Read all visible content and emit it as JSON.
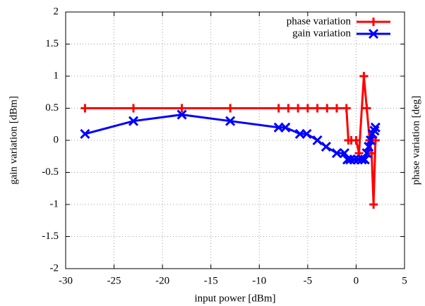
{
  "chart_data": {
    "type": "line",
    "xlabel": "input power [dBm]",
    "ylabel": "gain variation [dBm]",
    "y2label": "phase variation [deg]",
    "xlim": [
      -30,
      5
    ],
    "xticks": [
      -30,
      -25,
      -20,
      -15,
      -10,
      -5,
      0,
      5
    ],
    "ylim": [
      -2,
      2
    ],
    "yticks": [
      -2,
      -1.5,
      -1,
      -0.5,
      0,
      0.5,
      1,
      1.5,
      2
    ],
    "grid": true,
    "legend": "top-right",
    "series": [
      {
        "name": "phase variation",
        "color": "#ff0000",
        "marker": "plus",
        "x": [
          -28,
          -23,
          -18,
          -13,
          -8,
          -7,
          -6,
          -5,
          -4,
          -3,
          -2,
          -1,
          -0.8,
          -0.5,
          0,
          0.3,
          0.8,
          1.1,
          1.4,
          1.6,
          1.8,
          2
        ],
        "values": [
          0.5,
          0.5,
          0.5,
          0.5,
          0.5,
          0.5,
          0.5,
          0.5,
          0.5,
          0.5,
          0.5,
          0.5,
          0,
          0,
          0,
          -0.2,
          1,
          0.5,
          0,
          -0.2,
          -1,
          0
        ]
      },
      {
        "name": "gain variation",
        "color": "#0000ff",
        "marker": "cross",
        "x": [
          -28,
          -23,
          -18,
          -13,
          -8,
          -7.3,
          -5.8,
          -5.1,
          -4,
          -3.1,
          -2,
          -1.2,
          -0.9,
          -0.6,
          -0.2,
          0.2,
          0.6,
          0.9,
          1.1,
          1.3,
          1.5,
          1.7,
          1.9,
          2
        ],
        "values": [
          0.1,
          0.3,
          0.4,
          0.3,
          0.2,
          0.2,
          0.1,
          0.1,
          0,
          -0.1,
          -0.2,
          -0.2,
          -0.3,
          -0.3,
          -0.3,
          -0.3,
          -0.3,
          -0.3,
          -0.2,
          -0.1,
          0,
          0.1,
          0.15,
          0.2
        ]
      }
    ]
  }
}
